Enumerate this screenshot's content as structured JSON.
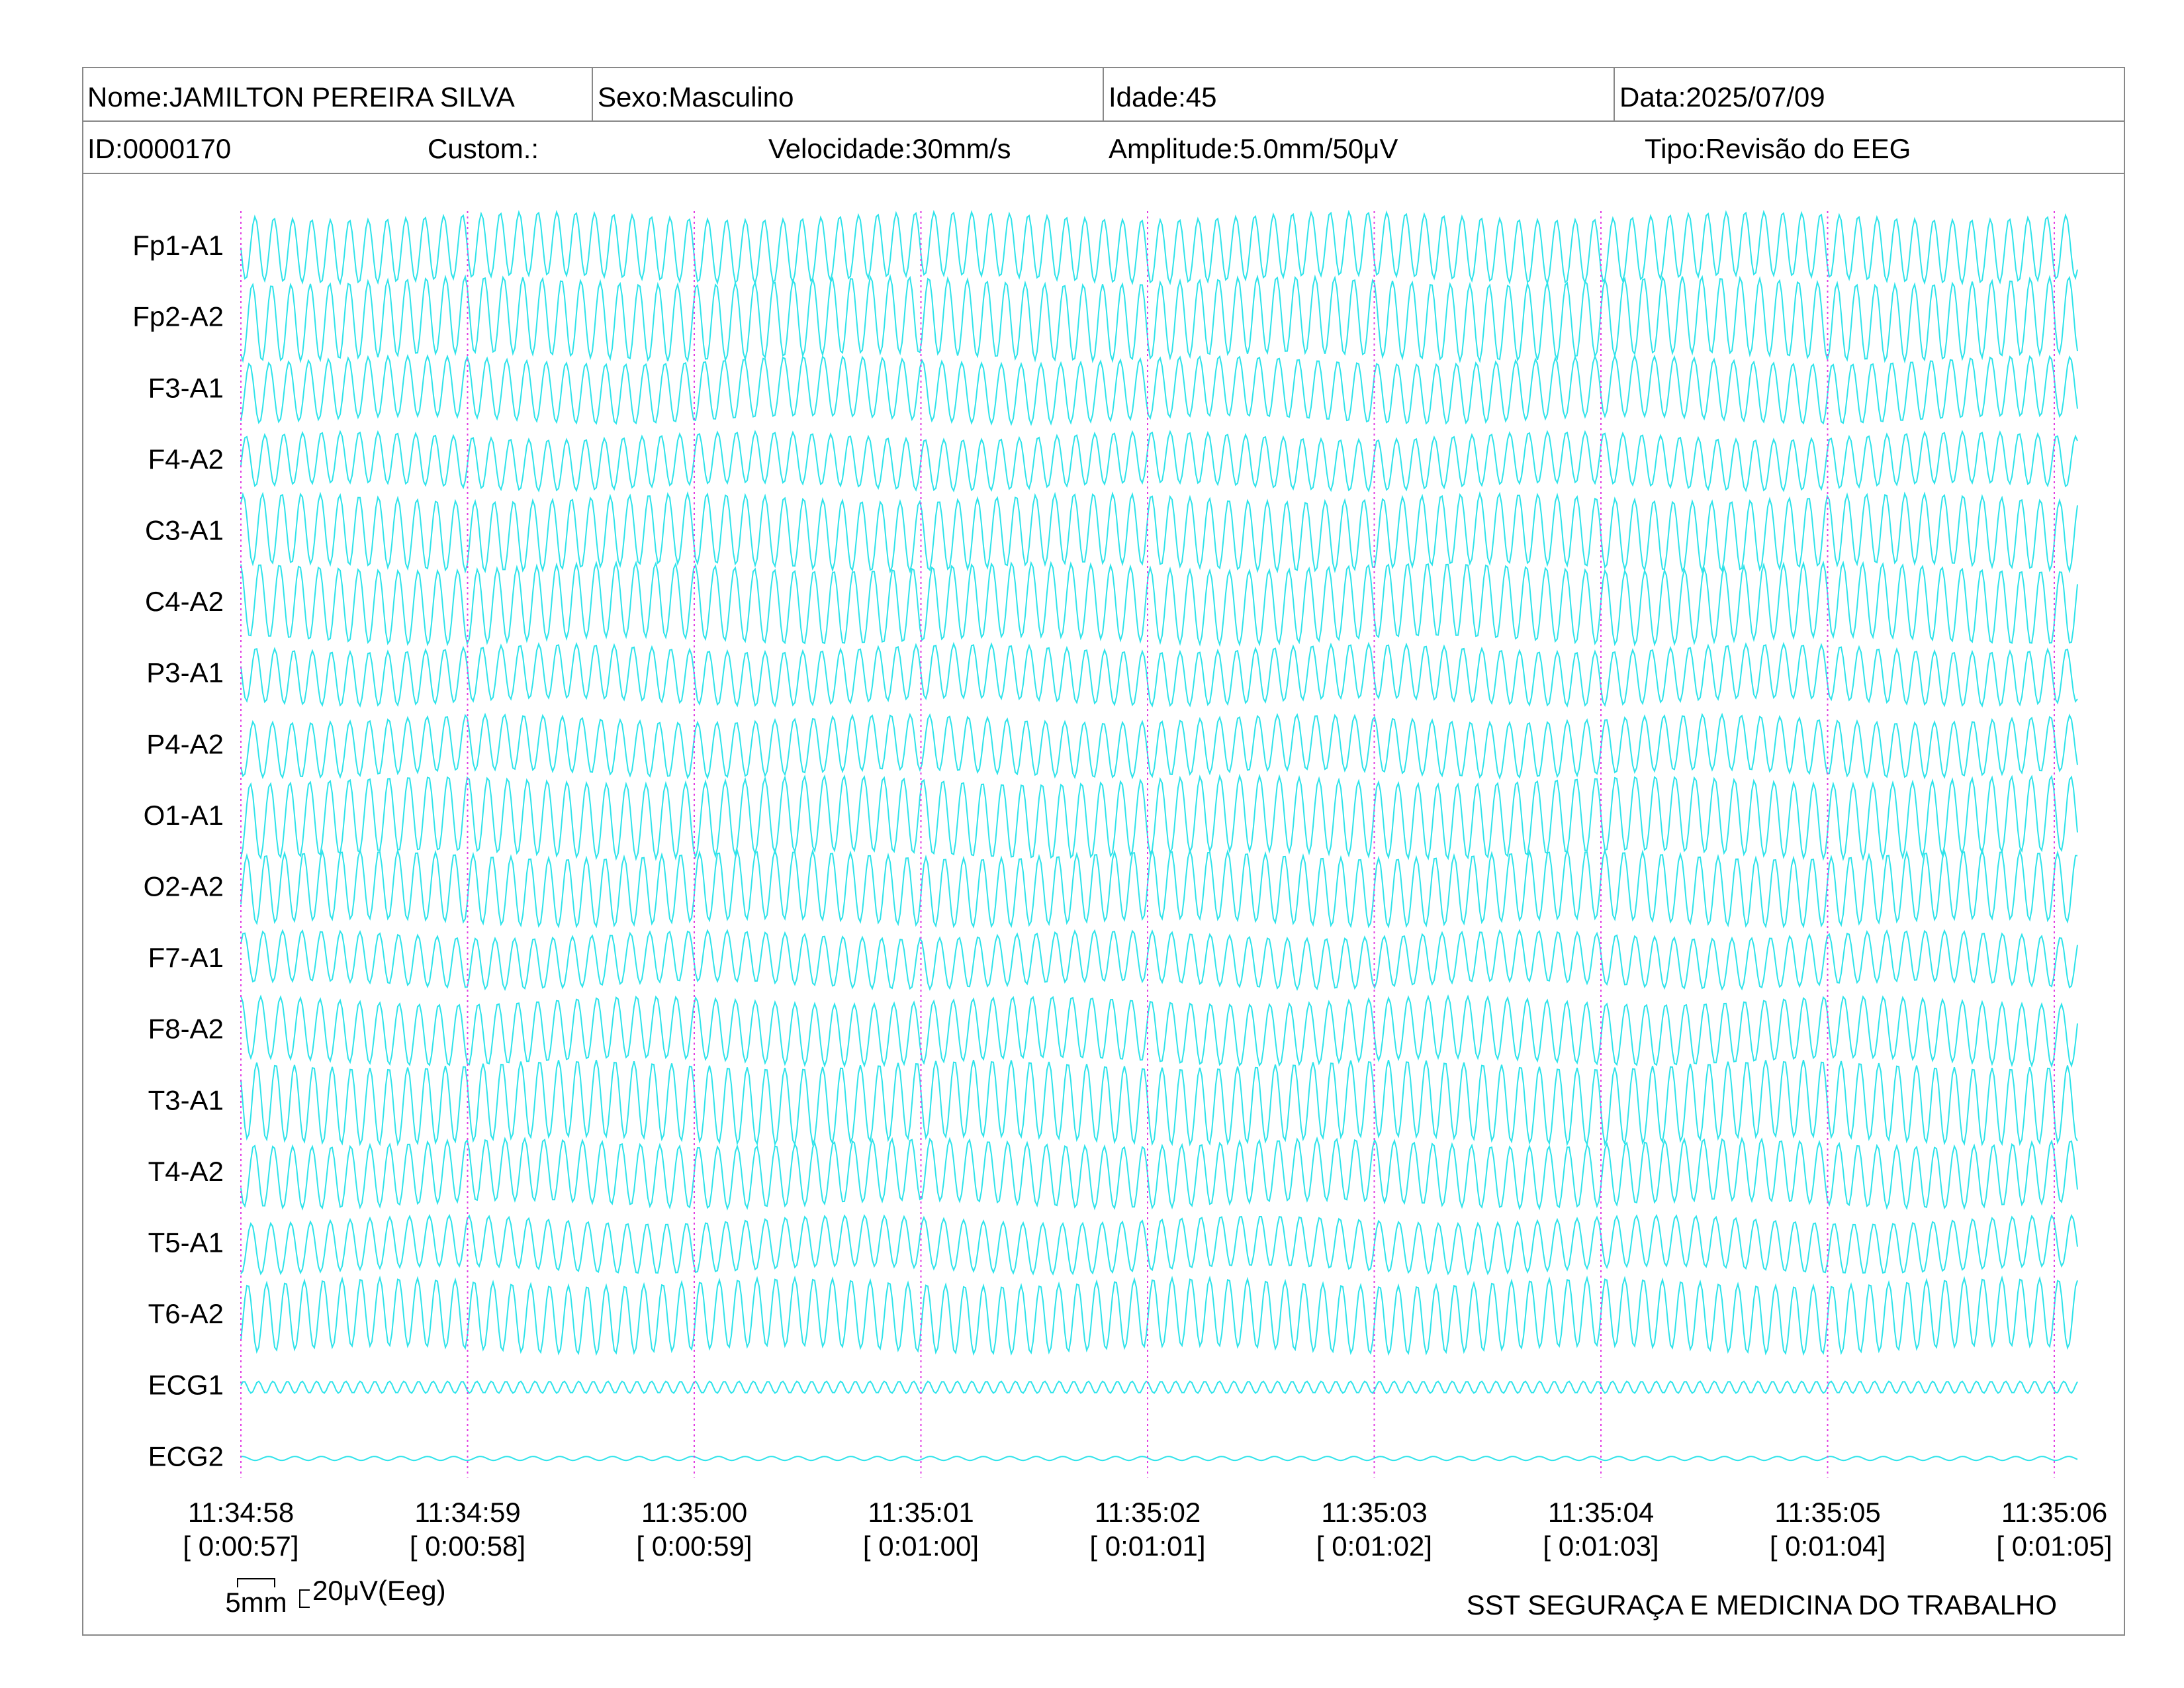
{
  "header": {
    "nome": "Nome:JAMILTON PEREIRA SILVA",
    "sexo": "Sexo:Masculino",
    "idade": "Idade:45",
    "data": "Data:2025/07/09",
    "id": "ID:0000170",
    "custom": "Custom.:",
    "velocidade": "Velocidade:30mm/s",
    "amplitude": "Amplitude:5.0mm/50μV",
    "tipo": "Tipo:Revisão do EEG"
  },
  "channels": [
    "Fp1-A1",
    "Fp2-A2",
    "F3-A1",
    "F4-A2",
    "C3-A1",
    "C4-A2",
    "P3-A1",
    "P4-A2",
    "O1-A1",
    "O2-A2",
    "F7-A1",
    "F8-A2",
    "T3-A1",
    "T4-A2",
    "T5-A1",
    "T6-A2",
    "ECG1",
    "ECG2"
  ],
  "time_marks": [
    {
      "clock": "11:34:58",
      "elapsed": "[ 0:00:57]"
    },
    {
      "clock": "11:34:59",
      "elapsed": "[ 0:00:58]"
    },
    {
      "clock": "11:35:00",
      "elapsed": "[ 0:00:59]"
    },
    {
      "clock": "11:35:01",
      "elapsed": "[ 0:01:00]"
    },
    {
      "clock": "11:35:02",
      "elapsed": "[ 0:01:01]"
    },
    {
      "clock": "11:35:03",
      "elapsed": "[ 0:01:02]"
    },
    {
      "clock": "11:35:04",
      "elapsed": "[ 0:01:03]"
    },
    {
      "clock": "11:35:05",
      "elapsed": "[ 0:01:04]"
    },
    {
      "clock": "11:35:06",
      "elapsed": "[ 0:01:05]"
    }
  ],
  "scale": {
    "width": "5mm",
    "height": "20μV(Eeg)"
  },
  "footer": "SST SEGURAÇA E MEDICINA DO TRABALHO"
}
